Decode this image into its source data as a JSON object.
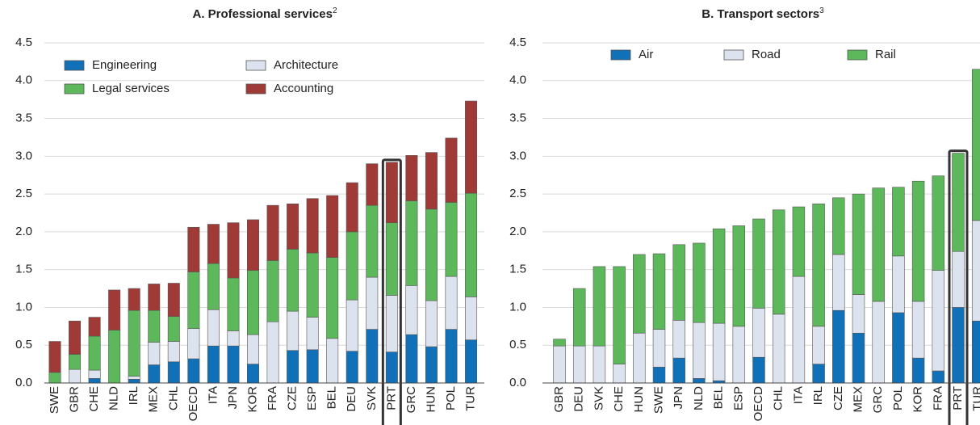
{
  "chart_data": [
    {
      "type": "bar",
      "stacked": true,
      "title": "A. Professional services",
      "title_sup": "2",
      "categories": [
        "SWE",
        "GBR",
        "CHE",
        "NLD",
        "IRL",
        "MEX",
        "CHL",
        "OECD",
        "ITA",
        "JPN",
        "KOR",
        "FRA",
        "CZE",
        "ESP",
        "BEL",
        "DEU",
        "SVK",
        "PRT",
        "GRC",
        "HUN",
        "POL",
        "TUR"
      ],
      "series": [
        {
          "name": "Engineering",
          "color": "#1070b8",
          "values": [
            0,
            0,
            0.06,
            0,
            0.05,
            0.24,
            0.28,
            0.32,
            0.49,
            0.49,
            0.25,
            0,
            0.43,
            0.44,
            0,
            0.42,
            0.71,
            0.41,
            0.64,
            0.48,
            0.71,
            0.57
          ]
        },
        {
          "name": "Architecture",
          "color": "#dde3ee",
          "values": [
            0,
            0.18,
            0.11,
            0,
            0.04,
            0.3,
            0.27,
            0.4,
            0.48,
            0.2,
            0.39,
            0.81,
            0.52,
            0.43,
            0.59,
            0.68,
            0.69,
            0.75,
            0.65,
            0.61,
            0.7,
            0.57
          ]
        },
        {
          "name": "Legal services",
          "color": "#5cb85a",
          "values": [
            0.14,
            0.2,
            0.45,
            0.7,
            0.87,
            0.42,
            0.33,
            0.75,
            0.61,
            0.7,
            0.85,
            0.81,
            0.82,
            0.85,
            1.07,
            0.9,
            0.95,
            0.96,
            1.12,
            1.21,
            0.98,
            1.37
          ]
        },
        {
          "name": "Accounting",
          "color": "#a03a36",
          "values": [
            0.41,
            0.44,
            0.25,
            0.53,
            0.29,
            0.35,
            0.44,
            0.59,
            0.52,
            0.73,
            0.67,
            0.73,
            0.6,
            0.72,
            0.82,
            0.65,
            0.55,
            0.8,
            0.6,
            0.75,
            0.85,
            1.22
          ]
        }
      ],
      "ylim": [
        0,
        4.5
      ],
      "yticks": [
        {
          "value": 0,
          "label": "0.0"
        },
        0.5,
        {
          "value": 1,
          "label": "1.0"
        },
        1.5,
        {
          "value": 2,
          "label": "2.0"
        },
        2.5,
        {
          "value": 3,
          "label": "3.0"
        },
        3.5,
        {
          "value": 4,
          "label": "4.0"
        },
        4.5
      ],
      "grid": true
    },
    {
      "type": "bar",
      "stacked": true,
      "title": "B. Transport sectors",
      "title_sup": "3",
      "categories": [
        "GBR",
        "DEU",
        "SVK",
        "CHE",
        "HUN",
        "SWE",
        "JPN",
        "NLD",
        "BEL",
        "ESP",
        "OECD",
        "CHL",
        "ITA",
        "IRL",
        "CZE",
        "MEX",
        "GRC",
        "POL",
        "KOR",
        "FRA",
        "PRT",
        "TUR"
      ],
      "series": [
        {
          "name": "Air",
          "color": "#1070b8",
          "values": [
            0,
            0,
            0,
            0,
            0,
            0.21,
            0.33,
            0.06,
            0.03,
            0,
            0.34,
            0,
            0,
            0.25,
            0.96,
            0.66,
            0,
            0.93,
            0.33,
            0.16,
            1.0,
            0.82
          ]
        },
        {
          "name": "Road",
          "color": "#dde3ee",
          "values": [
            0.49,
            0.49,
            0.49,
            0.25,
            0.66,
            0.5,
            0.5,
            0.74,
            0.76,
            0.75,
            0.65,
            0.91,
            1.41,
            0.5,
            0.74,
            0.51,
            1.08,
            0.75,
            0.75,
            1.33,
            0.74,
            1.33
          ]
        },
        {
          "name": "Rail",
          "color": "#5cb85a",
          "values": [
            0.09,
            0.76,
            1.05,
            1.29,
            1.04,
            1.0,
            1.0,
            1.05,
            1.25,
            1.33,
            1.18,
            1.38,
            0.92,
            1.62,
            0.75,
            1.33,
            1.5,
            0.91,
            1.59,
            1.25,
            1.3,
            2.0
          ]
        }
      ],
      "ylim": [
        0,
        4.5
      ],
      "yticks": [
        {
          "value": 0,
          "label": "0.0"
        },
        0.5,
        {
          "value": 1,
          "label": "1.0"
        },
        1.5,
        {
          "value": 2,
          "label": "2.0"
        },
        2.5,
        {
          "value": 3,
          "label": "3.0"
        },
        3.5,
        {
          "value": 4,
          "label": "4.0"
        },
        4.5
      ],
      "grid": true
    }
  ]
}
